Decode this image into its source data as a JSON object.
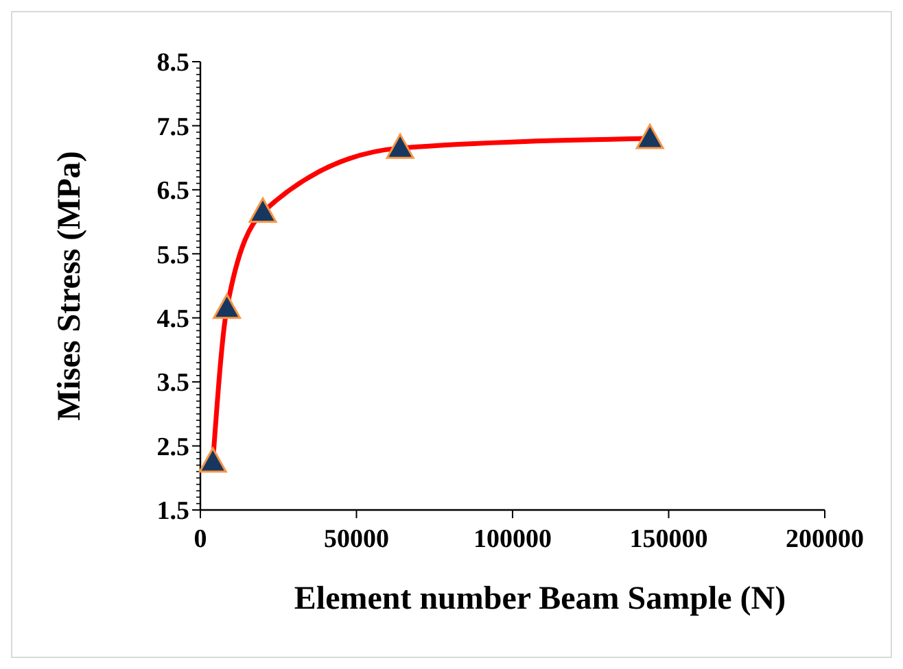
{
  "chart_data": {
    "type": "line",
    "xlabel": "Element number Beam Sample (N)",
    "ylabel": "Mises Stress (MPa)",
    "xlim": [
      0,
      200000
    ],
    "xticks": [
      0,
      50000,
      100000,
      150000,
      200000
    ],
    "ylim": [
      1.5,
      8.5
    ],
    "yticks": [
      1.5,
      2.5,
      3.5,
      4.5,
      5.5,
      6.5,
      7.5,
      8.5
    ],
    "grid": false,
    "series": [
      {
        "color": "#ff0000",
        "marker": "none",
        "x": [
          4000,
          8500,
          20000,
          64000,
          144000
        ],
        "values": [
          2.25,
          4.65,
          6.15,
          7.15,
          7.3
        ]
      },
      {
        "type": "scatter",
        "color": "#17375e",
        "marker": "triangle",
        "x": [
          4000,
          8500,
          20000,
          64000,
          144000
        ],
        "values": [
          2.25,
          4.65,
          6.15,
          7.15,
          7.3
        ]
      }
    ]
  }
}
